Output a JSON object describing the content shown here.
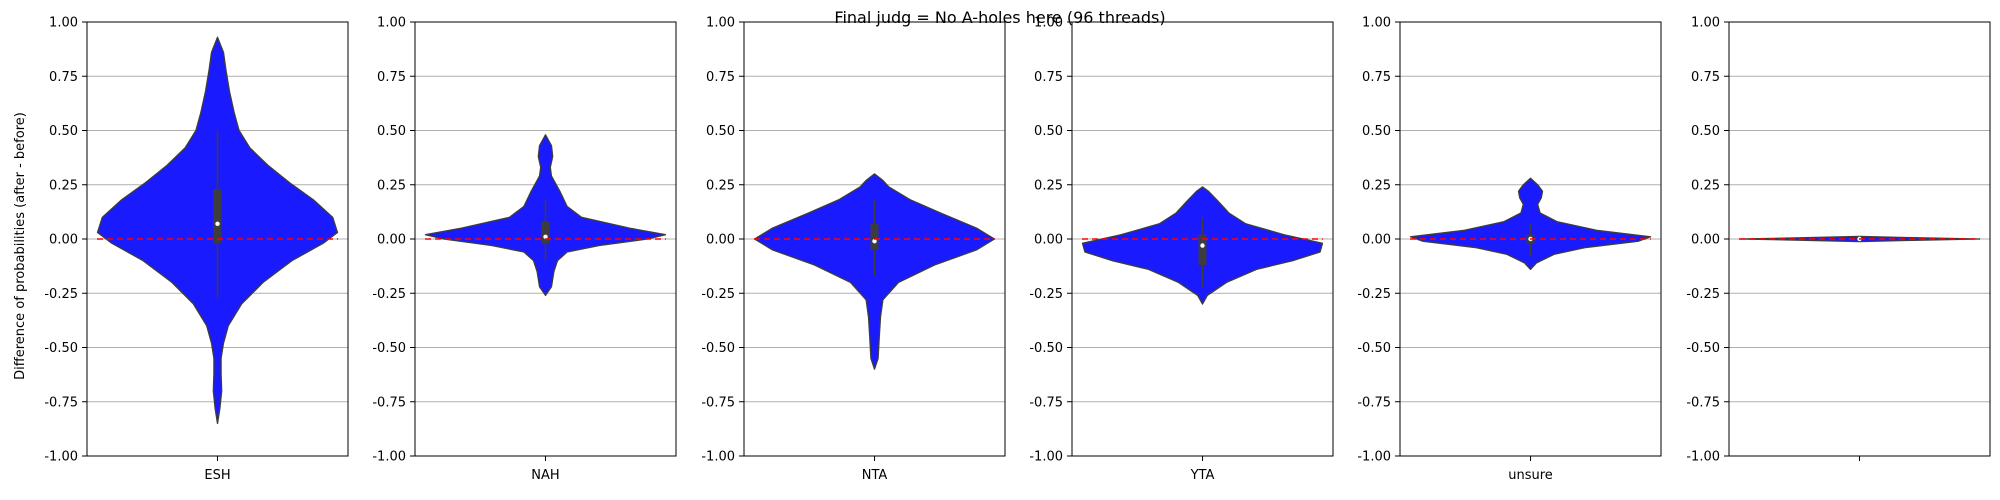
{
  "figure": {
    "suptitle": "Final judg = No A-holes here (96 threads)",
    "ylabel": "Difference of probabilities (after - before)"
  },
  "chart_data": [
    {
      "type": "violin",
      "category": "ESH",
      "ylim": [
        -1.0,
        1.0
      ],
      "yticks": [
        "1.00",
        "0.75",
        "0.50",
        "0.25",
        "0.00",
        "-0.25",
        "-0.50",
        "-0.75",
        "-1.00"
      ],
      "grid": "y",
      "reference_line": 0.0,
      "color": "#1a1aff",
      "box": {
        "q1": -0.02,
        "median": 0.07,
        "q3": 0.23,
        "whisker_low": -0.27,
        "whisker_high": 0.5
      },
      "violin_profile": [
        {
          "y": -0.85,
          "w": 0.0
        },
        {
          "y": -0.78,
          "w": 0.02
        },
        {
          "y": -0.7,
          "w": 0.035
        },
        {
          "y": -0.62,
          "w": 0.03
        },
        {
          "y": -0.55,
          "w": 0.03
        },
        {
          "y": -0.48,
          "w": 0.05
        },
        {
          "y": -0.4,
          "w": 0.09
        },
        {
          "y": -0.3,
          "w": 0.2
        },
        {
          "y": -0.2,
          "w": 0.38
        },
        {
          "y": -0.1,
          "w": 0.62
        },
        {
          "y": -0.02,
          "w": 0.88
        },
        {
          "y": 0.03,
          "w": 1.0
        },
        {
          "y": 0.1,
          "w": 0.96
        },
        {
          "y": 0.18,
          "w": 0.8
        },
        {
          "y": 0.26,
          "w": 0.6
        },
        {
          "y": 0.34,
          "w": 0.42
        },
        {
          "y": 0.42,
          "w": 0.27
        },
        {
          "y": 0.5,
          "w": 0.18
        },
        {
          "y": 0.58,
          "w": 0.14
        },
        {
          "y": 0.68,
          "w": 0.1
        },
        {
          "y": 0.78,
          "w": 0.07
        },
        {
          "y": 0.86,
          "w": 0.05
        },
        {
          "y": 0.93,
          "w": 0.0
        }
      ]
    },
    {
      "type": "violin",
      "category": "NAH",
      "ylim": [
        -1.0,
        1.0
      ],
      "yticks": [
        "1.00",
        "0.75",
        "0.50",
        "0.25",
        "0.00",
        "-0.25",
        "-0.50",
        "-0.75",
        "-1.00"
      ],
      "grid": "y",
      "reference_line": 0.0,
      "color": "#1a1aff",
      "box": {
        "q1": -0.02,
        "median": 0.01,
        "q3": 0.08,
        "whisker_low": -0.1,
        "whisker_high": 0.18
      },
      "violin_profile": [
        {
          "y": -0.26,
          "w": 0.0
        },
        {
          "y": -0.22,
          "w": 0.05
        },
        {
          "y": -0.15,
          "w": 0.07
        },
        {
          "y": -0.1,
          "w": 0.1
        },
        {
          "y": -0.06,
          "w": 0.18
        },
        {
          "y": -0.03,
          "w": 0.45
        },
        {
          "y": 0.0,
          "w": 0.85
        },
        {
          "y": 0.02,
          "w": 1.0
        },
        {
          "y": 0.05,
          "w": 0.7
        },
        {
          "y": 0.1,
          "w": 0.3
        },
        {
          "y": 0.15,
          "w": 0.18
        },
        {
          "y": 0.22,
          "w": 0.12
        },
        {
          "y": 0.29,
          "w": 0.05
        },
        {
          "y": 0.33,
          "w": 0.04
        },
        {
          "y": 0.38,
          "w": 0.06
        },
        {
          "y": 0.43,
          "w": 0.05
        },
        {
          "y": 0.48,
          "w": 0.0
        }
      ]
    },
    {
      "type": "violin",
      "category": "NTA",
      "ylim": [
        -1.0,
        1.0
      ],
      "yticks": [
        "1.00",
        "0.75",
        "0.50",
        "0.25",
        "0.00",
        "-0.25",
        "-0.50",
        "-0.75",
        "-1.00"
      ],
      "grid": "y",
      "reference_line": 0.0,
      "color": "#1a1aff",
      "box": {
        "q1": -0.05,
        "median": -0.01,
        "q3": 0.07,
        "whisker_low": -0.17,
        "whisker_high": 0.18
      },
      "violin_profile": [
        {
          "y": -0.6,
          "w": 0.0
        },
        {
          "y": -0.55,
          "w": 0.03
        },
        {
          "y": -0.45,
          "w": 0.04
        },
        {
          "y": -0.36,
          "w": 0.05
        },
        {
          "y": -0.28,
          "w": 0.07
        },
        {
          "y": -0.2,
          "w": 0.2
        },
        {
          "y": -0.12,
          "w": 0.5
        },
        {
          "y": -0.05,
          "w": 0.85
        },
        {
          "y": 0.0,
          "w": 1.0
        },
        {
          "y": 0.05,
          "w": 0.85
        },
        {
          "y": 0.12,
          "w": 0.55
        },
        {
          "y": 0.18,
          "w": 0.3
        },
        {
          "y": 0.24,
          "w": 0.12
        },
        {
          "y": 0.27,
          "w": 0.07
        },
        {
          "y": 0.3,
          "w": 0.0
        }
      ]
    },
    {
      "type": "violin",
      "category": "YTA",
      "ylim": [
        -1.0,
        1.0
      ],
      "yticks": [
        "1.00",
        "0.75",
        "0.50",
        "0.25",
        "0.00",
        "-0.25",
        "-0.50",
        "-0.75",
        "-1.00"
      ],
      "grid": "y",
      "reference_line": 0.0,
      "color": "#1a1aff",
      "box": {
        "q1": -0.12,
        "median": -0.03,
        "q3": 0.02,
        "whisker_low": -0.22,
        "whisker_high": 0.1
      },
      "violin_profile": [
        {
          "y": -0.3,
          "w": 0.0
        },
        {
          "y": -0.26,
          "w": 0.04
        },
        {
          "y": -0.2,
          "w": 0.2
        },
        {
          "y": -0.14,
          "w": 0.45
        },
        {
          "y": -0.1,
          "w": 0.75
        },
        {
          "y": -0.06,
          "w": 0.98
        },
        {
          "y": -0.02,
          "w": 1.0
        },
        {
          "y": 0.02,
          "w": 0.68
        },
        {
          "y": 0.07,
          "w": 0.36
        },
        {
          "y": 0.12,
          "w": 0.22
        },
        {
          "y": 0.18,
          "w": 0.12
        },
        {
          "y": 0.22,
          "w": 0.05
        },
        {
          "y": 0.24,
          "w": 0.0
        }
      ]
    },
    {
      "type": "violin",
      "category": "unsure",
      "ylim": [
        -1.0,
        1.0
      ],
      "yticks": [
        "1.00",
        "0.75",
        "0.50",
        "0.25",
        "0.00",
        "-0.25",
        "-0.50",
        "-0.75",
        "-1.00"
      ],
      "grid": "y",
      "reference_line": 0.0,
      "color": "#1a1aff",
      "box": {
        "q1": -0.02,
        "median": 0.0,
        "q3": 0.02,
        "whisker_low": -0.08,
        "whisker_high": 0.07
      },
      "violin_profile": [
        {
          "y": -0.14,
          "w": 0.0
        },
        {
          "y": -0.11,
          "w": 0.05
        },
        {
          "y": -0.07,
          "w": 0.2
        },
        {
          "y": -0.04,
          "w": 0.45
        },
        {
          "y": -0.01,
          "w": 0.9
        },
        {
          "y": 0.01,
          "w": 1.0
        },
        {
          "y": 0.04,
          "w": 0.55
        },
        {
          "y": 0.08,
          "w": 0.22
        },
        {
          "y": 0.12,
          "w": 0.08
        },
        {
          "y": 0.16,
          "w": 0.06
        },
        {
          "y": 0.19,
          "w": 0.09
        },
        {
          "y": 0.22,
          "w": 0.1
        },
        {
          "y": 0.25,
          "w": 0.06
        },
        {
          "y": 0.28,
          "w": 0.0
        }
      ]
    },
    {
      "type": "violin",
      "category": "",
      "ylim": [
        -1.0,
        1.0
      ],
      "yticks": [
        "1.00",
        "0.75",
        "0.50",
        "0.25",
        "0.00",
        "-0.25",
        "-0.50",
        "-0.75",
        "-1.00"
      ],
      "grid": "y",
      "reference_line": 0.0,
      "color": "#1a1aff",
      "box": {
        "q1": -0.003,
        "median": 0.0,
        "q3": 0.003,
        "whisker_low": -0.006,
        "whisker_high": 0.006
      },
      "violin_profile": [
        {
          "y": -0.012,
          "w": 0.0
        },
        {
          "y": -0.006,
          "w": 0.45
        },
        {
          "y": 0.0,
          "w": 1.0
        },
        {
          "y": 0.006,
          "w": 0.45
        },
        {
          "y": 0.012,
          "w": 0.0
        }
      ]
    }
  ]
}
